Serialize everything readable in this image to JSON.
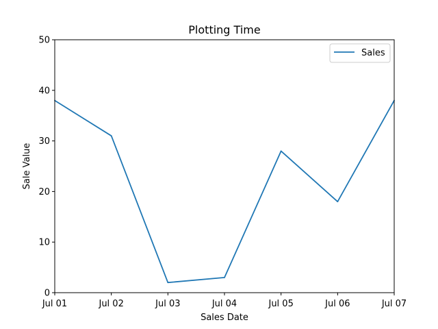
{
  "chart_data": {
    "type": "line",
    "title": "Plotting Time",
    "xlabel": "Sales Date",
    "ylabel": "Sale Value",
    "x": [
      "Jul 01",
      "Jul 02",
      "Jul 03",
      "Jul 04",
      "Jul 05",
      "Jul 06",
      "Jul 07"
    ],
    "x_tick_labels": [
      "Jul 01",
      "Jul 02",
      "Jul 03",
      "Jul 04",
      "Jul 05",
      "Jul 06",
      "Jul 07"
    ],
    "y_tick_labels": [
      "0",
      "10",
      "20",
      "30",
      "40",
      "50"
    ],
    "ylim": [
      0,
      50
    ],
    "grid": false,
    "legend_position": "top-right",
    "series": [
      {
        "name": "Sales",
        "color": "#1f77b4",
        "values": [
          38,
          31,
          2,
          3,
          28,
          18,
          38
        ]
      }
    ]
  }
}
